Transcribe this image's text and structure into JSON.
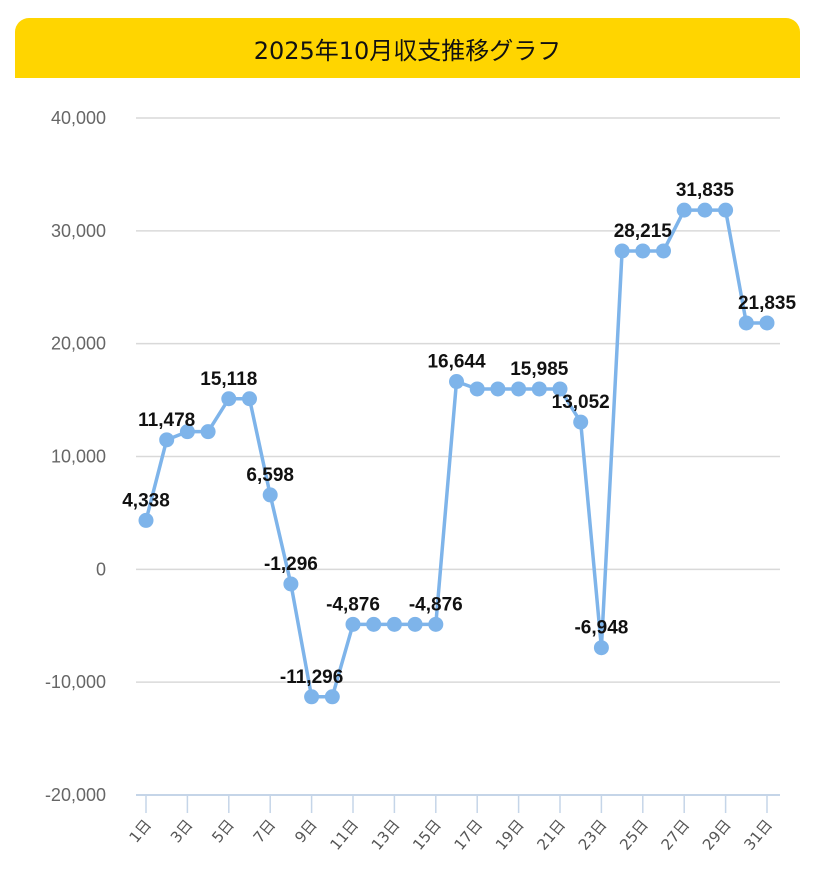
{
  "chart_data": {
    "type": "line",
    "title": "2025年10月収支推移グラフ",
    "xlabel": "",
    "ylabel": "",
    "ylim": [
      -20000,
      40000
    ],
    "yticks": [
      -20000,
      -10000,
      0,
      10000,
      20000,
      30000,
      40000
    ],
    "ytick_labels": [
      "-20,000",
      "-10,000",
      "0",
      "10,000",
      "20,000",
      "30,000",
      "40,000"
    ],
    "categories": [
      "1日",
      "2日",
      "3日",
      "4日",
      "5日",
      "6日",
      "7日",
      "8日",
      "9日",
      "10日",
      "11日",
      "12日",
      "13日",
      "14日",
      "15日",
      "16日",
      "17日",
      "18日",
      "19日",
      "20日",
      "21日",
      "22日",
      "23日",
      "24日",
      "25日",
      "26日",
      "27日",
      "28日",
      "29日",
      "30日",
      "31日"
    ],
    "xtick_labels": [
      "1日",
      "3日",
      "5日",
      "7日",
      "9日",
      "11日",
      "13日",
      "15日",
      "17日",
      "19日",
      "21日",
      "23日",
      "25日",
      "27日",
      "29日",
      "31日"
    ],
    "values": [
      4338,
      11478,
      12200,
      12200,
      15118,
      15118,
      6598,
      -1296,
      -11296,
      -11296,
      -4876,
      -4876,
      -4876,
      -4876,
      -4876,
      16644,
      15985,
      15985,
      15985,
      15985,
      15985,
      13052,
      -6948,
      28215,
      28215,
      28215,
      31835,
      31835,
      31835,
      21835,
      21835
    ],
    "data_labels": [
      {
        "day": 1,
        "text": "4,338"
      },
      {
        "day": 2,
        "text": "11,478"
      },
      {
        "day": 5,
        "text": "15,118"
      },
      {
        "day": 7,
        "text": "6,598"
      },
      {
        "day": 8,
        "text": "-1,296"
      },
      {
        "day": 9,
        "text": "-11,296"
      },
      {
        "day": 11,
        "text": "-4,876"
      },
      {
        "day": 15,
        "text": "-4,876"
      },
      {
        "day": 16,
        "text": "16,644"
      },
      {
        "day": 20,
        "text": "15,985"
      },
      {
        "day": 22,
        "text": "13,052"
      },
      {
        "day": 23,
        "text": "-6,948"
      },
      {
        "day": 25,
        "text": "28,215"
      },
      {
        "day": 28,
        "text": "31,835"
      },
      {
        "day": 31,
        "text": "21,835"
      }
    ],
    "grid": true,
    "legend": "none",
    "colors": {
      "line": "#7EB4EA",
      "title_bg": "#FFD500",
      "grid": "#D9D9D9",
      "axis": "#C5D5E8"
    }
  }
}
